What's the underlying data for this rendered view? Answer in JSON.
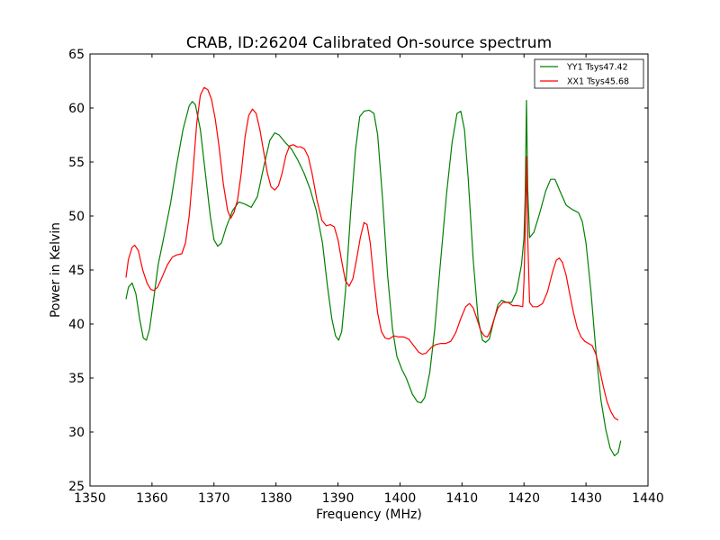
{
  "chart_data": {
    "type": "line",
    "title": "CRAB, ID:26204 Calibrated On-source spectrum",
    "xlabel": "Frequency (MHz)",
    "ylabel": "Power in Kelvin",
    "xlim": [
      1350,
      1440
    ],
    "ylim": [
      25,
      65
    ],
    "xticks": [
      1350,
      1360,
      1370,
      1380,
      1390,
      1400,
      1410,
      1420,
      1430,
      1440
    ],
    "yticks": [
      25,
      30,
      35,
      40,
      45,
      50,
      55,
      60,
      65
    ],
    "grid": false,
    "legend_position": "top-right",
    "series": [
      {
        "name": "YY1 Tsys47.42",
        "color": "#008000",
        "points": [
          [
            1355.8,
            42.3
          ],
          [
            1356.2,
            43.4
          ],
          [
            1356.8,
            43.8
          ],
          [
            1357.4,
            42.8
          ],
          [
            1358.0,
            40.5
          ],
          [
            1358.6,
            38.7
          ],
          [
            1359.1,
            38.5
          ],
          [
            1359.6,
            39.5
          ],
          [
            1360.2,
            42.0
          ],
          [
            1361.0,
            45.5
          ],
          [
            1362.0,
            48.3
          ],
          [
            1363.0,
            51.2
          ],
          [
            1364.0,
            54.8
          ],
          [
            1365.0,
            58.0
          ],
          [
            1366.0,
            60.2
          ],
          [
            1366.5,
            60.6
          ],
          [
            1367.0,
            60.3
          ],
          [
            1367.8,
            58.0
          ],
          [
            1368.6,
            54.0
          ],
          [
            1369.4,
            50.0
          ],
          [
            1370.0,
            47.8
          ],
          [
            1370.6,
            47.2
          ],
          [
            1371.2,
            47.5
          ],
          [
            1372.0,
            49.0
          ],
          [
            1373.0,
            50.5
          ],
          [
            1374.0,
            51.3
          ],
          [
            1375.0,
            51.1
          ],
          [
            1376.0,
            50.8
          ],
          [
            1377.0,
            51.8
          ],
          [
            1378.0,
            54.5
          ],
          [
            1379.0,
            57.0
          ],
          [
            1379.8,
            57.7
          ],
          [
            1380.5,
            57.5
          ],
          [
            1381.5,
            56.8
          ],
          [
            1382.5,
            56.2
          ],
          [
            1383.5,
            55.2
          ],
          [
            1384.5,
            54.0
          ],
          [
            1385.5,
            52.5
          ],
          [
            1386.5,
            50.5
          ],
          [
            1387.5,
            47.5
          ],
          [
            1388.3,
            43.5
          ],
          [
            1389.0,
            40.5
          ],
          [
            1389.6,
            38.9
          ],
          [
            1390.1,
            38.5
          ],
          [
            1390.6,
            39.3
          ],
          [
            1391.2,
            43.0
          ],
          [
            1392.0,
            50.0
          ],
          [
            1392.8,
            56.0
          ],
          [
            1393.5,
            59.2
          ],
          [
            1394.2,
            59.7
          ],
          [
            1395.0,
            59.8
          ],
          [
            1395.8,
            59.5
          ],
          [
            1396.4,
            57.5
          ],
          [
            1397.2,
            51.5
          ],
          [
            1398.0,
            44.5
          ],
          [
            1398.8,
            39.5
          ],
          [
            1399.5,
            37.0
          ],
          [
            1400.3,
            35.8
          ],
          [
            1401.0,
            35.0
          ],
          [
            1402.0,
            33.5
          ],
          [
            1402.8,
            32.8
          ],
          [
            1403.4,
            32.7
          ],
          [
            1404.0,
            33.2
          ],
          [
            1404.8,
            35.5
          ],
          [
            1405.6,
            39.5
          ],
          [
            1406.5,
            45.5
          ],
          [
            1407.5,
            52.0
          ],
          [
            1408.4,
            56.8
          ],
          [
            1409.2,
            59.5
          ],
          [
            1409.8,
            59.7
          ],
          [
            1410.4,
            58.0
          ],
          [
            1411.0,
            53.5
          ],
          [
            1411.8,
            46.0
          ],
          [
            1412.6,
            40.5
          ],
          [
            1413.3,
            38.5
          ],
          [
            1413.8,
            38.3
          ],
          [
            1414.4,
            38.6
          ],
          [
            1415.0,
            40.0
          ],
          [
            1415.8,
            41.8
          ],
          [
            1416.4,
            42.2
          ],
          [
            1417.2,
            42.0
          ],
          [
            1418.0,
            42.0
          ],
          [
            1418.8,
            43.0
          ],
          [
            1419.6,
            45.5
          ],
          [
            1420.0,
            48.0
          ],
          [
            1420.2,
            52.0
          ],
          [
            1420.4,
            60.7
          ],
          [
            1420.6,
            52.5
          ],
          [
            1420.9,
            48.0
          ],
          [
            1421.6,
            48.5
          ],
          [
            1422.5,
            50.2
          ],
          [
            1423.5,
            52.3
          ],
          [
            1424.3,
            53.4
          ],
          [
            1425.0,
            53.4
          ],
          [
            1425.8,
            52.3
          ],
          [
            1426.8,
            51.0
          ],
          [
            1427.8,
            50.6
          ],
          [
            1428.8,
            50.3
          ],
          [
            1429.4,
            49.5
          ],
          [
            1430.0,
            47.5
          ],
          [
            1430.8,
            43.0
          ],
          [
            1431.6,
            37.5
          ],
          [
            1432.4,
            33.0
          ],
          [
            1433.2,
            30.2
          ],
          [
            1433.9,
            28.5
          ],
          [
            1434.6,
            27.8
          ],
          [
            1435.2,
            28.1
          ],
          [
            1435.6,
            29.2
          ]
        ]
      },
      {
        "name": "XX1 Tsys45.68",
        "color": "#ff0000",
        "points": [
          [
            1355.8,
            44.3
          ],
          [
            1356.2,
            46.0
          ],
          [
            1356.8,
            47.1
          ],
          [
            1357.2,
            47.3
          ],
          [
            1357.8,
            46.8
          ],
          [
            1358.5,
            45.0
          ],
          [
            1359.2,
            43.8
          ],
          [
            1359.8,
            43.2
          ],
          [
            1360.3,
            43.1
          ],
          [
            1360.9,
            43.4
          ],
          [
            1361.6,
            44.3
          ],
          [
            1362.5,
            45.5
          ],
          [
            1363.3,
            46.2
          ],
          [
            1364.0,
            46.4
          ],
          [
            1364.8,
            46.5
          ],
          [
            1365.4,
            47.5
          ],
          [
            1366.0,
            50.0
          ],
          [
            1366.6,
            54.0
          ],
          [
            1367.2,
            58.5
          ],
          [
            1367.8,
            61.2
          ],
          [
            1368.4,
            61.9
          ],
          [
            1369.0,
            61.7
          ],
          [
            1369.6,
            60.8
          ],
          [
            1370.2,
            59.0
          ],
          [
            1370.8,
            56.5
          ],
          [
            1371.5,
            53.0
          ],
          [
            1372.2,
            50.5
          ],
          [
            1372.7,
            49.8
          ],
          [
            1373.2,
            50.3
          ],
          [
            1373.8,
            51.5
          ],
          [
            1374.4,
            54.0
          ],
          [
            1375.0,
            57.3
          ],
          [
            1375.6,
            59.3
          ],
          [
            1376.2,
            59.9
          ],
          [
            1376.8,
            59.5
          ],
          [
            1377.4,
            58.0
          ],
          [
            1378.0,
            56.0
          ],
          [
            1378.6,
            54.0
          ],
          [
            1379.2,
            52.7
          ],
          [
            1379.8,
            52.4
          ],
          [
            1380.4,
            52.8
          ],
          [
            1381.0,
            54.0
          ],
          [
            1381.6,
            55.6
          ],
          [
            1382.2,
            56.5
          ],
          [
            1382.8,
            56.6
          ],
          [
            1383.4,
            56.4
          ],
          [
            1384.0,
            56.4
          ],
          [
            1384.6,
            56.2
          ],
          [
            1385.2,
            55.5
          ],
          [
            1385.8,
            54.0
          ],
          [
            1386.6,
            51.5
          ],
          [
            1387.4,
            49.6
          ],
          [
            1388.1,
            49.1
          ],
          [
            1388.8,
            49.2
          ],
          [
            1389.4,
            49.0
          ],
          [
            1390.0,
            47.8
          ],
          [
            1390.6,
            45.8
          ],
          [
            1391.2,
            44.0
          ],
          [
            1391.8,
            43.5
          ],
          [
            1392.4,
            44.2
          ],
          [
            1393.0,
            46.0
          ],
          [
            1393.6,
            48.0
          ],
          [
            1394.2,
            49.4
          ],
          [
            1394.7,
            49.2
          ],
          [
            1395.2,
            47.5
          ],
          [
            1395.8,
            44.0
          ],
          [
            1396.4,
            41.0
          ],
          [
            1397.0,
            39.3
          ],
          [
            1397.6,
            38.7
          ],
          [
            1398.2,
            38.6
          ],
          [
            1399.0,
            38.9
          ],
          [
            1399.8,
            38.8
          ],
          [
            1400.6,
            38.8
          ],
          [
            1401.4,
            38.6
          ],
          [
            1402.2,
            38.0
          ],
          [
            1403.0,
            37.4
          ],
          [
            1403.6,
            37.2
          ],
          [
            1404.2,
            37.3
          ],
          [
            1405.0,
            37.8
          ],
          [
            1405.8,
            38.1
          ],
          [
            1406.6,
            38.2
          ],
          [
            1407.4,
            38.2
          ],
          [
            1408.2,
            38.4
          ],
          [
            1409.0,
            39.2
          ],
          [
            1409.8,
            40.5
          ],
          [
            1410.6,
            41.6
          ],
          [
            1411.2,
            41.9
          ],
          [
            1411.8,
            41.5
          ],
          [
            1412.4,
            40.5
          ],
          [
            1413.0,
            39.4
          ],
          [
            1413.6,
            38.9
          ],
          [
            1414.1,
            38.8
          ],
          [
            1414.6,
            39.4
          ],
          [
            1415.2,
            40.5
          ],
          [
            1415.8,
            41.5
          ],
          [
            1416.6,
            42.0
          ],
          [
            1417.4,
            42.0
          ],
          [
            1418.2,
            41.7
          ],
          [
            1419.0,
            41.7
          ],
          [
            1419.8,
            41.6
          ],
          [
            1420.0,
            44.0
          ],
          [
            1420.2,
            49.0
          ],
          [
            1420.4,
            55.5
          ],
          [
            1420.6,
            48.0
          ],
          [
            1420.9,
            42.0
          ],
          [
            1421.4,
            41.6
          ],
          [
            1422.2,
            41.6
          ],
          [
            1423.0,
            41.9
          ],
          [
            1423.8,
            43.0
          ],
          [
            1424.6,
            44.8
          ],
          [
            1425.2,
            45.9
          ],
          [
            1425.7,
            46.1
          ],
          [
            1426.2,
            45.7
          ],
          [
            1426.8,
            44.5
          ],
          [
            1427.4,
            42.7
          ],
          [
            1428.0,
            41.0
          ],
          [
            1428.6,
            39.6
          ],
          [
            1429.2,
            38.8
          ],
          [
            1429.8,
            38.4
          ],
          [
            1430.4,
            38.2
          ],
          [
            1431.0,
            38.0
          ],
          [
            1431.6,
            37.2
          ],
          [
            1432.2,
            35.8
          ],
          [
            1432.8,
            34.2
          ],
          [
            1433.4,
            32.8
          ],
          [
            1434.0,
            31.9
          ],
          [
            1434.6,
            31.3
          ],
          [
            1435.2,
            31.1
          ]
        ]
      }
    ]
  }
}
